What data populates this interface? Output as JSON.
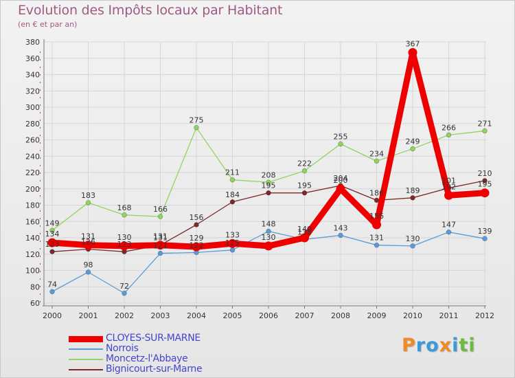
{
  "title": "Evolution des Impôts locaux par Habitant",
  "subtitle": "(en € et par an)",
  "logo_text": "Proxiti",
  "logo_letters": [
    {
      "ch": "P",
      "color": "#f08a24"
    },
    {
      "ch": "r",
      "color": "#3a9ad9"
    },
    {
      "ch": "o",
      "color": "#3a9ad9"
    },
    {
      "ch": "x",
      "color": "#f08a24"
    },
    {
      "ch": "i",
      "color": "#3a9ad9"
    },
    {
      "ch": "t",
      "color": "#6dbb3e"
    },
    {
      "ch": "i",
      "color": "#6dbb3e"
    }
  ],
  "chart_data": {
    "type": "line",
    "title": "Evolution des Impôts locaux par Habitant",
    "subtitle": "(en € et par an)",
    "xlabel": "",
    "ylabel": "",
    "x": [
      "2000",
      "2001",
      "2002",
      "2003",
      "2004",
      "2005",
      "2006",
      "2007",
      "2008",
      "2009",
      "2010",
      "2011",
      "2012"
    ],
    "ylim": [
      60,
      380
    ],
    "yticks": [
      60,
      80,
      100,
      120,
      140,
      160,
      180,
      200,
      220,
      240,
      260,
      280,
      300,
      320,
      340,
      360,
      380
    ],
    "grid": true,
    "legend_position": "bottom-left",
    "series": [
      {
        "name": "CLOYES-SUR-MARNE",
        "color": "#ee0000",
        "thick": true,
        "values": [
          134,
          131,
          130,
          131,
          129,
          133,
          130,
          140,
          200,
          156,
          367,
          192,
          195
        ],
        "labels": [
          "134",
          "131",
          "130",
          "131",
          "129",
          "133",
          "130",
          "140",
          "200",
          "156",
          "367",
          "192",
          "195"
        ]
      },
      {
        "name": "Norrois",
        "color": "#5b9bd5",
        "thick": false,
        "values": [
          74,
          98,
          72,
          121,
          122,
          125,
          148,
          138,
          143,
          131,
          130,
          147,
          139
        ],
        "labels": [
          "74",
          "98",
          "72",
          "121",
          "122",
          "125",
          "148",
          "138",
          "143",
          "131",
          "130",
          "147",
          "139"
        ]
      },
      {
        "name": "Moncetz-l'Abbaye",
        "color": "#8fd45e",
        "thick": false,
        "values": [
          149,
          183,
          168,
          166,
          275,
          211,
          208,
          222,
          255,
          234,
          249,
          266,
          271
        ],
        "labels": [
          "149",
          "183",
          "168",
          "166",
          "275",
          "211",
          "208",
          "222",
          "255",
          "234",
          "249",
          "266",
          "271"
        ]
      },
      {
        "name": "Bignicourt-sur-Marne",
        "color": "#7a2a2a",
        "thick": false,
        "values": [
          123,
          126,
          123,
          131,
          156,
          184,
          195,
          195,
          204,
          186,
          189,
          201,
          210
        ],
        "labels": [
          "123",
          "126",
          "123",
          "131",
          "156",
          "184",
          "195",
          "195",
          "204",
          "186",
          "189",
          "201",
          "210"
        ]
      }
    ]
  }
}
